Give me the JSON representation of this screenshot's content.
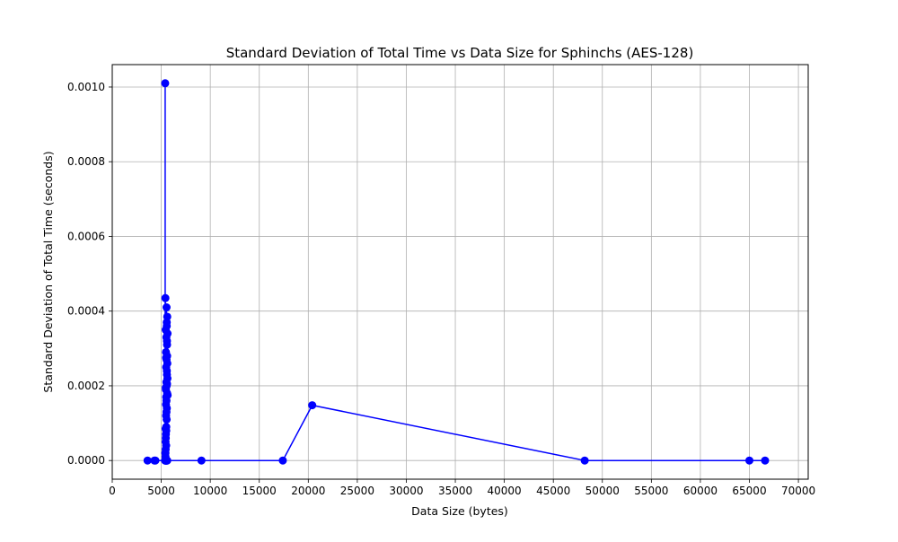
{
  "chart_data": {
    "type": "line",
    "title": "Standard Deviation of Total Time vs Data Size for Sphinchs (AES-128)",
    "xlabel": "Data Size (bytes)",
    "ylabel": "Standard Deviation of Total Time (seconds)",
    "xlim": [
      0,
      71000
    ],
    "ylim": [
      -5e-05,
      0.00106
    ],
    "xticks": [
      0,
      5000,
      10000,
      15000,
      20000,
      25000,
      30000,
      35000,
      40000,
      45000,
      50000,
      55000,
      60000,
      65000,
      70000
    ],
    "xtick_labels": [
      "0",
      "5000",
      "10000",
      "15000",
      "20000",
      "25000",
      "30000",
      "35000",
      "40000",
      "45000",
      "50000",
      "55000",
      "60000",
      "65000",
      "70000"
    ],
    "yticks": [
      0.0,
      0.0002,
      0.0004,
      0.0006,
      0.0008,
      0.001
    ],
    "ytick_labels": [
      "0.0000",
      "0.0002",
      "0.0004",
      "0.0006",
      "0.0008",
      "0.0010"
    ],
    "grid": true,
    "colors": {
      "series": "#0000ff",
      "grid": "#b0b0b0",
      "axis": "#000000"
    },
    "series": [
      {
        "marker": "circle",
        "x": [
          3600,
          4300,
          4400,
          5400,
          5400,
          5400,
          5420,
          5430,
          5440,
          5450,
          5460,
          5470,
          5480,
          5490,
          5500,
          5510,
          5520,
          5530,
          5540,
          5550,
          5560,
          5570,
          5580,
          5590,
          5600,
          5610,
          5620,
          5630,
          5640,
          5650,
          5600,
          5590,
          5580,
          5570,
          5560,
          5550,
          5540,
          5530,
          5520,
          5510,
          5500,
          5490,
          5480,
          5470,
          5460,
          5450,
          5440,
          5430,
          5420,
          5410,
          5450,
          5500,
          5550,
          5600,
          5500,
          5450,
          5550,
          5600,
          9100,
          17400,
          20400,
          48200,
          65000,
          66600
        ],
        "y": [
          0.0,
          0.0,
          0.0,
          0.0,
          0.00101,
          0.0,
          0.000435,
          2e-05,
          8.5e-05,
          0.00035,
          6e-05,
          0.00019,
          0.00029,
          0.00012,
          0.00025,
          8e-05,
          0.00033,
          0.00016,
          0.00041,
          0.0002,
          0.00037,
          0.00014,
          0.00023,
          0.00031,
          0.00018,
          0.000385,
          0.00026,
          0.00022,
          0.00034,
          0.000175,
          0.00028,
          0.000205,
          0.00032,
          0.00024,
          0.00036,
          0.00011,
          0.00027,
          0.00013,
          0.00021,
          9e-05,
          0.00017,
          0.000275,
          0.00015,
          7e-05,
          0.000195,
          3e-05,
          5e-05,
          1e-05,
          0.0,
          2e-05,
          0.0,
          0.0,
          0.0,
          0.0,
          4e-05,
          0.0,
          0.0,
          0.0,
          0.0,
          0.0,
          0.000148,
          0.0,
          0.0,
          0.0
        ]
      }
    ]
  }
}
